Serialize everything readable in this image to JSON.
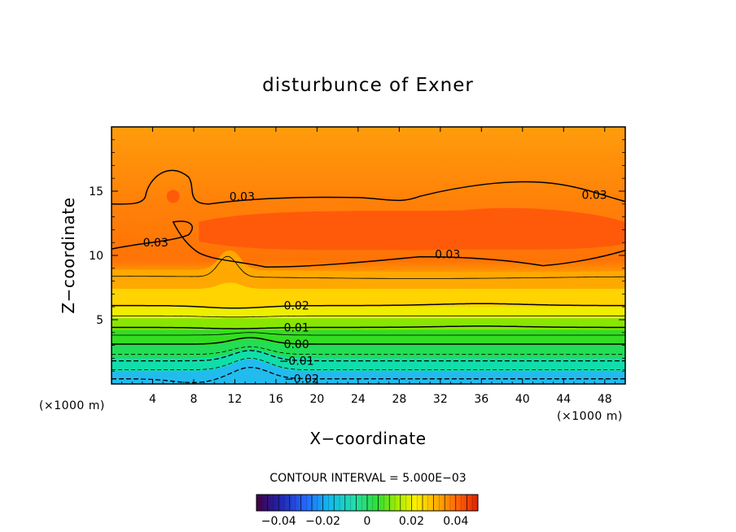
{
  "chart_data": {
    "type": "heatmap",
    "title": "disturbunce of Exner",
    "xlabel": "X−coordinate",
    "ylabel": "Z−coordinate",
    "x_unit": "(×1000 m)",
    "y_unit": "(×1000 m)",
    "xlim": [
      0,
      50
    ],
    "ylim": [
      0,
      20
    ],
    "x_ticks": [
      4,
      8,
      12,
      16,
      20,
      24,
      28,
      32,
      36,
      40,
      44,
      48
    ],
    "y_ticks": [
      5,
      10,
      15
    ],
    "contour_interval_text": "CONTOUR INTERVAL = 5.000E−03",
    "contour_interval": 0.005,
    "levels": [
      -0.05,
      -0.045,
      -0.04,
      -0.035,
      -0.03,
      -0.025,
      -0.02,
      -0.015,
      -0.01,
      -0.005,
      0.0,
      0.005,
      0.01,
      0.015,
      0.02,
      0.025,
      0.03,
      0.035,
      0.04,
      0.045,
      0.05
    ],
    "contour_labels": [
      {
        "text": "0.03",
        "x": 12.7,
        "z": 14.6
      },
      {
        "text": "0.03",
        "x": 47.0,
        "z": 14.7
      },
      {
        "text": "0.03",
        "x": 4.3,
        "z": 11.0
      },
      {
        "text": "0.03",
        "x": 32.7,
        "z": 10.1
      },
      {
        "text": "0.02",
        "x": 18.0,
        "z": 6.1
      },
      {
        "text": "0.01",
        "x": 18.0,
        "z": 4.4
      },
      {
        "text": "0.00",
        "x": 18.0,
        "z": 3.1
      },
      {
        "text": "−0.01",
        "x": 18.0,
        "z": 1.8
      },
      {
        "text": "−0.02",
        "x": 18.5,
        "z": 0.4
      }
    ],
    "colorbar": {
      "min": -0.05,
      "max": 0.05,
      "tick_values": [
        -0.04,
        -0.02,
        0,
        0.02,
        0.04
      ],
      "tick_labels": [
        "−0.04",
        "−0.02",
        "0",
        "0.02",
        "0.04"
      ]
    },
    "colors": {
      "orange": "#ff9900",
      "red_orange": "#ff5a0a",
      "yellow": "#ffee00",
      "green": "#22dd33",
      "cyan": "#11ddcc",
      "sky": "#22aaff"
    }
  }
}
